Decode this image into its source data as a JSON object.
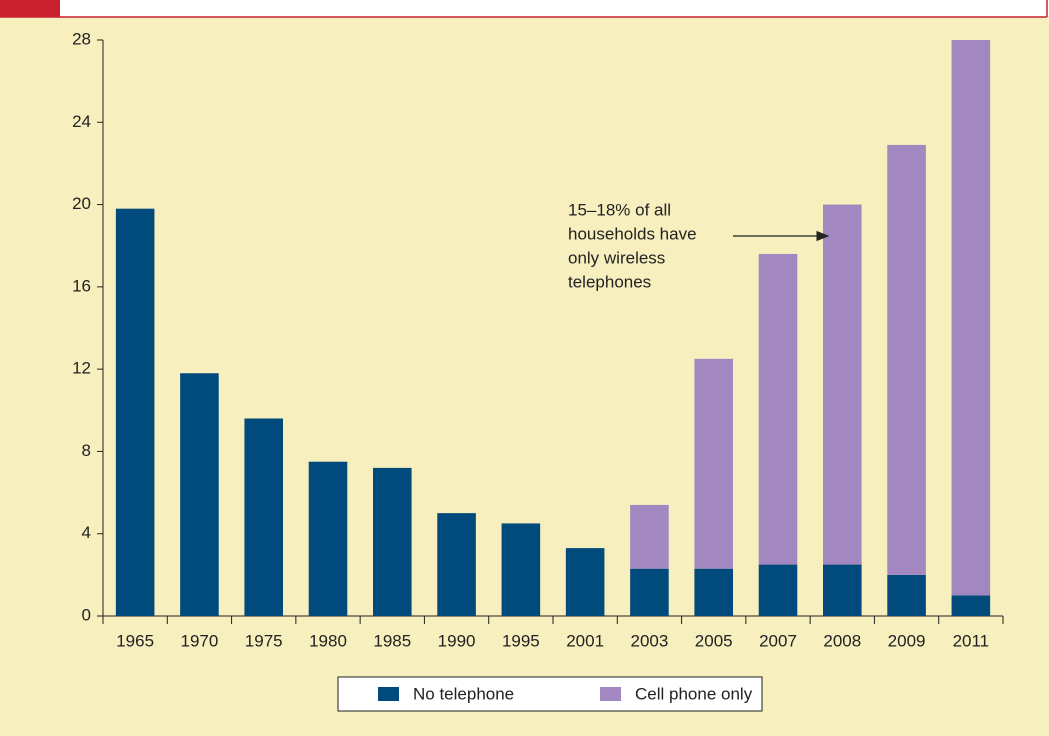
{
  "chart_data": {
    "type": "stacked_bar",
    "categories": [
      "1965",
      "1970",
      "1975",
      "1980",
      "1985",
      "1990",
      "1995",
      "2001",
      "2003",
      "2005",
      "2007",
      "2008",
      "2009",
      "2011"
    ],
    "series": [
      {
        "name": "No telephone",
        "color": "#004b7c",
        "values": [
          19.8,
          11.8,
          9.6,
          7.5,
          7.2,
          5.0,
          4.5,
          3.3,
          2.3,
          2.3,
          2.5,
          2.5,
          2.0,
          1.0
        ]
      },
      {
        "name": "Cell phone only",
        "color": "#a287c1",
        "values": [
          null,
          null,
          null,
          null,
          null,
          null,
          null,
          null,
          3.1,
          10.2,
          15.1,
          17.5,
          20.9,
          27.0
        ]
      }
    ],
    "ylim": [
      0,
      28
    ],
    "yticks": [
      0,
      4,
      8,
      12,
      16,
      20,
      24,
      28
    ],
    "annotation": [
      "15–18% of all",
      "households have",
      "only wireless",
      "telephones"
    ],
    "legend": "bottom"
  }
}
